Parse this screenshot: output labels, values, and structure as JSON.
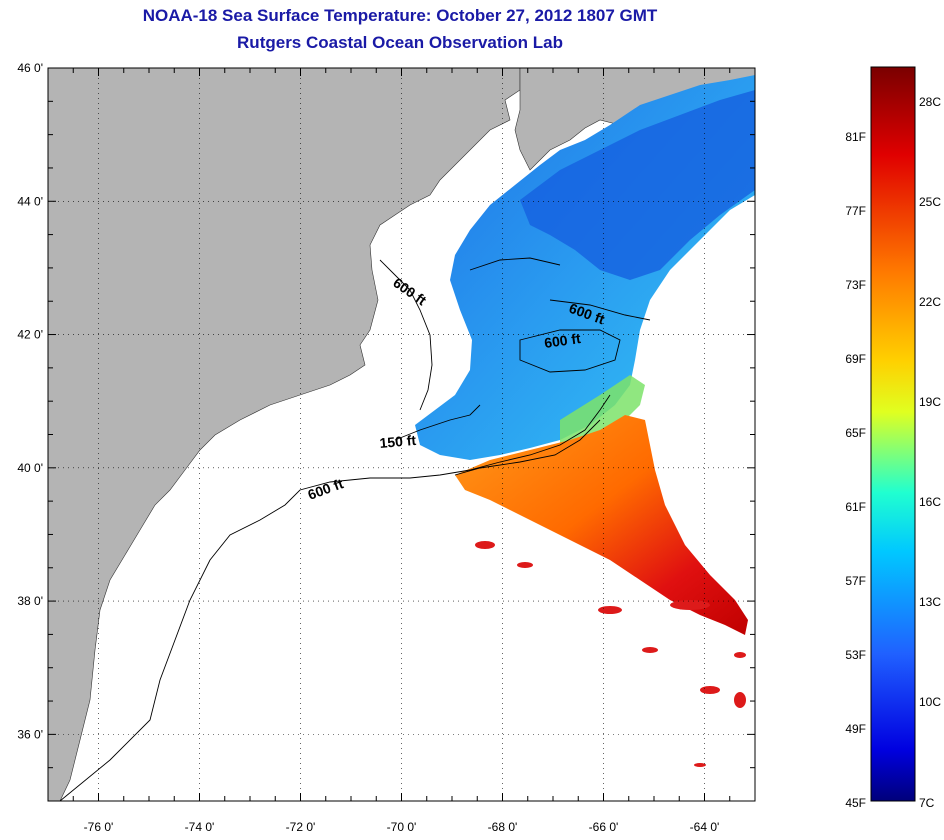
{
  "header": {
    "title": "NOAA-18 Sea Surface Temperature:  October 27, 2012 1807 GMT",
    "subtitle": "Rutgers Coastal Ocean Observation Lab"
  },
  "map": {
    "lat_ticks": [
      {
        "value": 46,
        "label": "46 0'"
      },
      {
        "value": 44,
        "label": "44 0'"
      },
      {
        "value": 42,
        "label": "42 0'"
      },
      {
        "value": 40,
        "label": "40 0'"
      },
      {
        "value": 38,
        "label": "38 0'"
      },
      {
        "value": 36,
        "label": "36 0'"
      }
    ],
    "lon_ticks": [
      {
        "value": -76,
        "label": "-76 0'"
      },
      {
        "value": -74,
        "label": "-74 0'"
      },
      {
        "value": -72,
        "label": "-72 0'"
      },
      {
        "value": -70,
        "label": "-70 0'"
      },
      {
        "value": -68,
        "label": "-68 0'"
      },
      {
        "value": -66,
        "label": "-66 0'"
      },
      {
        "value": -64,
        "label": "-64 0'"
      }
    ],
    "lat_range": [
      35,
      46
    ],
    "lon_range": [
      -77,
      -63
    ],
    "grid": "dotted",
    "land_color": "#b4b4b4",
    "contour_labels": [
      {
        "text": "600 ft"
      },
      {
        "text": "600 ft"
      },
      {
        "text": "600 ft"
      },
      {
        "text": "150 ft"
      },
      {
        "text": "600 ft"
      }
    ]
  },
  "colorbar": {
    "fahrenheit": [
      "81F",
      "77F",
      "73F",
      "69F",
      "65F",
      "61F",
      "57F",
      "53F",
      "49F",
      "45F"
    ],
    "celsius": [
      "28C",
      "25C",
      "22C",
      "19C",
      "16C",
      "13C",
      "10C",
      "7C"
    ],
    "colors": [
      "#8b0000",
      "#ff0000",
      "#ff8c00",
      "#ffff00",
      "#00ffff",
      "#0000ff",
      "#00008b"
    ]
  }
}
